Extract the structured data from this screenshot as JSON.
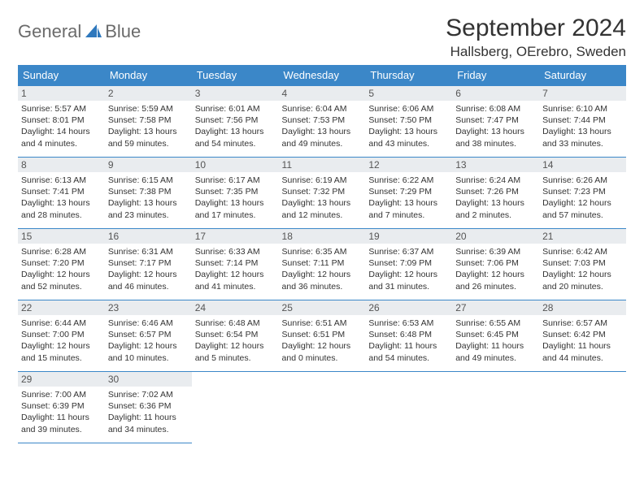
{
  "logo": {
    "word1": "General",
    "word2": "Blue"
  },
  "title": "September 2024",
  "subtitle": "Hallsberg, OErebro, Sweden",
  "colors": {
    "header_bg": "#3b87c8",
    "header_text": "#ffffff",
    "daynum_bg": "#e9ecef",
    "border": "#3b87c8",
    "logo_gray": "#6b6b6b",
    "logo_blue": "#2e78bd"
  },
  "day_headers": [
    "Sunday",
    "Monday",
    "Tuesday",
    "Wednesday",
    "Thursday",
    "Friday",
    "Saturday"
  ],
  "weeks": [
    [
      {
        "day": "1",
        "sunrise": "Sunrise: 5:57 AM",
        "sunset": "Sunset: 8:01 PM",
        "daylight1": "Daylight: 14 hours",
        "daylight2": "and 4 minutes."
      },
      {
        "day": "2",
        "sunrise": "Sunrise: 5:59 AM",
        "sunset": "Sunset: 7:58 PM",
        "daylight1": "Daylight: 13 hours",
        "daylight2": "and 59 minutes."
      },
      {
        "day": "3",
        "sunrise": "Sunrise: 6:01 AM",
        "sunset": "Sunset: 7:56 PM",
        "daylight1": "Daylight: 13 hours",
        "daylight2": "and 54 minutes."
      },
      {
        "day": "4",
        "sunrise": "Sunrise: 6:04 AM",
        "sunset": "Sunset: 7:53 PM",
        "daylight1": "Daylight: 13 hours",
        "daylight2": "and 49 minutes."
      },
      {
        "day": "5",
        "sunrise": "Sunrise: 6:06 AM",
        "sunset": "Sunset: 7:50 PM",
        "daylight1": "Daylight: 13 hours",
        "daylight2": "and 43 minutes."
      },
      {
        "day": "6",
        "sunrise": "Sunrise: 6:08 AM",
        "sunset": "Sunset: 7:47 PM",
        "daylight1": "Daylight: 13 hours",
        "daylight2": "and 38 minutes."
      },
      {
        "day": "7",
        "sunrise": "Sunrise: 6:10 AM",
        "sunset": "Sunset: 7:44 PM",
        "daylight1": "Daylight: 13 hours",
        "daylight2": "and 33 minutes."
      }
    ],
    [
      {
        "day": "8",
        "sunrise": "Sunrise: 6:13 AM",
        "sunset": "Sunset: 7:41 PM",
        "daylight1": "Daylight: 13 hours",
        "daylight2": "and 28 minutes."
      },
      {
        "day": "9",
        "sunrise": "Sunrise: 6:15 AM",
        "sunset": "Sunset: 7:38 PM",
        "daylight1": "Daylight: 13 hours",
        "daylight2": "and 23 minutes."
      },
      {
        "day": "10",
        "sunrise": "Sunrise: 6:17 AM",
        "sunset": "Sunset: 7:35 PM",
        "daylight1": "Daylight: 13 hours",
        "daylight2": "and 17 minutes."
      },
      {
        "day": "11",
        "sunrise": "Sunrise: 6:19 AM",
        "sunset": "Sunset: 7:32 PM",
        "daylight1": "Daylight: 13 hours",
        "daylight2": "and 12 minutes."
      },
      {
        "day": "12",
        "sunrise": "Sunrise: 6:22 AM",
        "sunset": "Sunset: 7:29 PM",
        "daylight1": "Daylight: 13 hours",
        "daylight2": "and 7 minutes."
      },
      {
        "day": "13",
        "sunrise": "Sunrise: 6:24 AM",
        "sunset": "Sunset: 7:26 PM",
        "daylight1": "Daylight: 13 hours",
        "daylight2": "and 2 minutes."
      },
      {
        "day": "14",
        "sunrise": "Sunrise: 6:26 AM",
        "sunset": "Sunset: 7:23 PM",
        "daylight1": "Daylight: 12 hours",
        "daylight2": "and 57 minutes."
      }
    ],
    [
      {
        "day": "15",
        "sunrise": "Sunrise: 6:28 AM",
        "sunset": "Sunset: 7:20 PM",
        "daylight1": "Daylight: 12 hours",
        "daylight2": "and 52 minutes."
      },
      {
        "day": "16",
        "sunrise": "Sunrise: 6:31 AM",
        "sunset": "Sunset: 7:17 PM",
        "daylight1": "Daylight: 12 hours",
        "daylight2": "and 46 minutes."
      },
      {
        "day": "17",
        "sunrise": "Sunrise: 6:33 AM",
        "sunset": "Sunset: 7:14 PM",
        "daylight1": "Daylight: 12 hours",
        "daylight2": "and 41 minutes."
      },
      {
        "day": "18",
        "sunrise": "Sunrise: 6:35 AM",
        "sunset": "Sunset: 7:11 PM",
        "daylight1": "Daylight: 12 hours",
        "daylight2": "and 36 minutes."
      },
      {
        "day": "19",
        "sunrise": "Sunrise: 6:37 AM",
        "sunset": "Sunset: 7:09 PM",
        "daylight1": "Daylight: 12 hours",
        "daylight2": "and 31 minutes."
      },
      {
        "day": "20",
        "sunrise": "Sunrise: 6:39 AM",
        "sunset": "Sunset: 7:06 PM",
        "daylight1": "Daylight: 12 hours",
        "daylight2": "and 26 minutes."
      },
      {
        "day": "21",
        "sunrise": "Sunrise: 6:42 AM",
        "sunset": "Sunset: 7:03 PM",
        "daylight1": "Daylight: 12 hours",
        "daylight2": "and 20 minutes."
      }
    ],
    [
      {
        "day": "22",
        "sunrise": "Sunrise: 6:44 AM",
        "sunset": "Sunset: 7:00 PM",
        "daylight1": "Daylight: 12 hours",
        "daylight2": "and 15 minutes."
      },
      {
        "day": "23",
        "sunrise": "Sunrise: 6:46 AM",
        "sunset": "Sunset: 6:57 PM",
        "daylight1": "Daylight: 12 hours",
        "daylight2": "and 10 minutes."
      },
      {
        "day": "24",
        "sunrise": "Sunrise: 6:48 AM",
        "sunset": "Sunset: 6:54 PM",
        "daylight1": "Daylight: 12 hours",
        "daylight2": "and 5 minutes."
      },
      {
        "day": "25",
        "sunrise": "Sunrise: 6:51 AM",
        "sunset": "Sunset: 6:51 PM",
        "daylight1": "Daylight: 12 hours",
        "daylight2": "and 0 minutes."
      },
      {
        "day": "26",
        "sunrise": "Sunrise: 6:53 AM",
        "sunset": "Sunset: 6:48 PM",
        "daylight1": "Daylight: 11 hours",
        "daylight2": "and 54 minutes."
      },
      {
        "day": "27",
        "sunrise": "Sunrise: 6:55 AM",
        "sunset": "Sunset: 6:45 PM",
        "daylight1": "Daylight: 11 hours",
        "daylight2": "and 49 minutes."
      },
      {
        "day": "28",
        "sunrise": "Sunrise: 6:57 AM",
        "sunset": "Sunset: 6:42 PM",
        "daylight1": "Daylight: 11 hours",
        "daylight2": "and 44 minutes."
      }
    ],
    [
      {
        "day": "29",
        "sunrise": "Sunrise: 7:00 AM",
        "sunset": "Sunset: 6:39 PM",
        "daylight1": "Daylight: 11 hours",
        "daylight2": "and 39 minutes."
      },
      {
        "day": "30",
        "sunrise": "Sunrise: 7:02 AM",
        "sunset": "Sunset: 6:36 PM",
        "daylight1": "Daylight: 11 hours",
        "daylight2": "and 34 minutes."
      },
      null,
      null,
      null,
      null,
      null
    ]
  ]
}
